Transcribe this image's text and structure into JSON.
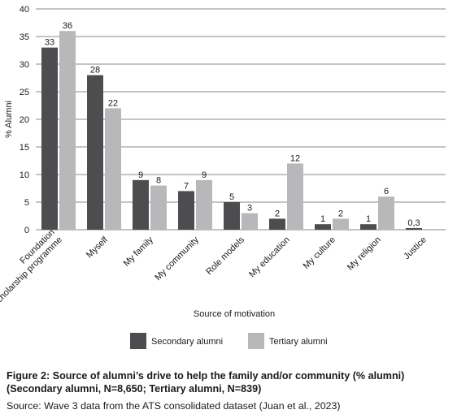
{
  "chart_data": {
    "type": "bar",
    "title": "",
    "xlabel": "Source of motivation",
    "ylabel": "% Alumni",
    "ylim": [
      0,
      40
    ],
    "y_ticks": [
      "0",
      "5",
      "10",
      "15",
      "20",
      "25",
      "30",
      "35",
      "40"
    ],
    "grid": true,
    "legend_position": "bottom",
    "categories": [
      "Foundation\nscholarship programme",
      "Myself",
      "My family",
      "My community",
      "Role models",
      "My education",
      "My culture",
      "My religion",
      "Justice"
    ],
    "series": [
      {
        "name": "Secondary alumni",
        "color": "#4d4d4f",
        "values": [
          33,
          28,
          9,
          7,
          5,
          2,
          1,
          1,
          0.3
        ],
        "labels": [
          "33",
          "28",
          "9",
          "7",
          "5",
          "2",
          "1",
          "1",
          "0,3"
        ]
      },
      {
        "name": "Tertiary alumni",
        "color": "#b8b8ba",
        "values": [
          36,
          22,
          8,
          9,
          3,
          12,
          2,
          6,
          0
        ],
        "labels": [
          "36",
          "22",
          "8",
          "9",
          "3",
          "12",
          "2",
          "6",
          ""
        ]
      }
    ]
  },
  "figure": {
    "caption_line1": "Figure 2: Source of alumni’s drive to help the family and/or community (% alumni)",
    "caption_line2": "(Secondary alumni, N=8,650; Tertiary alumni, N=839)",
    "source": "Source: Wave 3 data from the ATS consolidated dataset (Juan et al., 2023)"
  }
}
